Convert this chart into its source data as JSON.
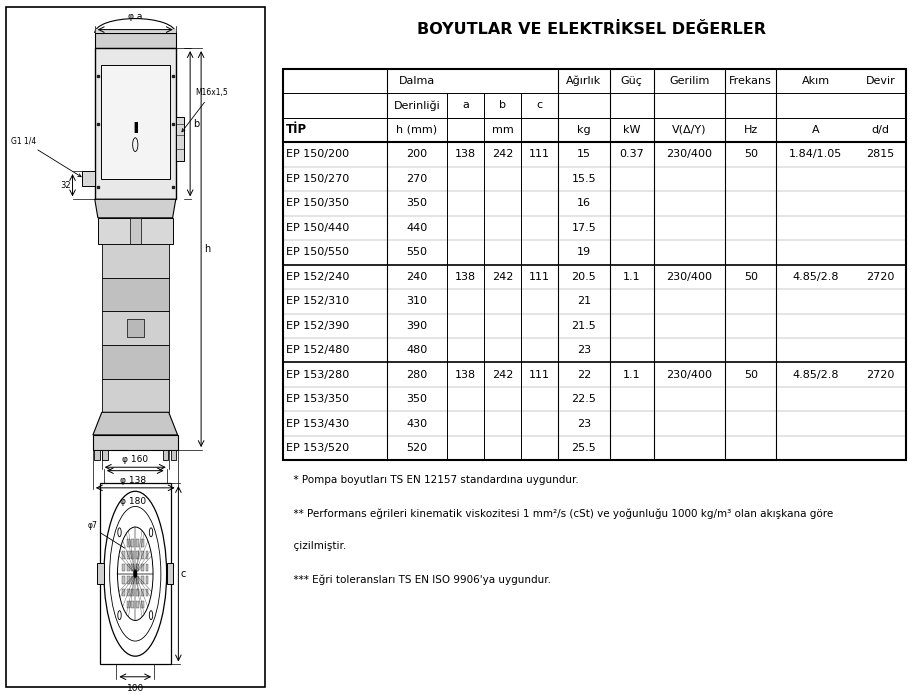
{
  "title": "BOYUTLAR VE ELEKTRİKSEL DEĞERLER",
  "rows": [
    [
      "EP 150/200",
      "200",
      "138",
      "242",
      "111",
      "15",
      "0.37",
      "230/400",
      "50",
      "1.84/1.05",
      "2815"
    ],
    [
      "EP 150/270",
      "270",
      "",
      "",
      "",
      "15.5",
      "",
      "",
      "",
      "",
      ""
    ],
    [
      "EP 150/350",
      "350",
      "",
      "",
      "",
      "16",
      "",
      "",
      "",
      "",
      ""
    ],
    [
      "EP 150/440",
      "440",
      "",
      "",
      "",
      "17.5",
      "",
      "",
      "",
      "",
      ""
    ],
    [
      "EP 150/550",
      "550",
      "",
      "",
      "",
      "19",
      "",
      "",
      "",
      "",
      ""
    ],
    [
      "EP 152/240",
      "240",
      "138",
      "242",
      "111",
      "20.5",
      "1.1",
      "230/400",
      "50",
      "4.85/2.8",
      "2720"
    ],
    [
      "EP 152/310",
      "310",
      "",
      "",
      "",
      "21",
      "",
      "",
      "",
      "",
      ""
    ],
    [
      "EP 152/390",
      "390",
      "",
      "",
      "",
      "21.5",
      "",
      "",
      "",
      "",
      ""
    ],
    [
      "EP 152/480",
      "480",
      "",
      "",
      "",
      "23",
      "",
      "",
      "",
      "",
      ""
    ],
    [
      "EP 153/280",
      "280",
      "138",
      "242",
      "111",
      "22",
      "1.1",
      "230/400",
      "50",
      "4.85/2.8",
      "2720"
    ],
    [
      "EP 153/350",
      "350",
      "",
      "",
      "",
      "22.5",
      "",
      "",
      "",
      "",
      ""
    ],
    [
      "EP 153/430",
      "430",
      "",
      "",
      "",
      "23",
      "",
      "",
      "",
      "",
      ""
    ],
    [
      "EP 153/520",
      "520",
      "",
      "",
      "",
      "25.5",
      "",
      "",
      "",
      "",
      ""
    ]
  ],
  "footnote1": "  * Pompa boyutları TS EN 12157 standardına uygundur.",
  "footnote2": "  ** Performans eğrileri kinematik viskozitesi 1 mm²/s (cSt) ve yoğunluğu 1000 kg/m³ olan akışkana göre",
  "footnote3": "  çizilmiştir.",
  "footnote4": "  *** Eğri toleransları TS EN ISO 9906'ya uygundur.",
  "bg_color": "#ffffff"
}
